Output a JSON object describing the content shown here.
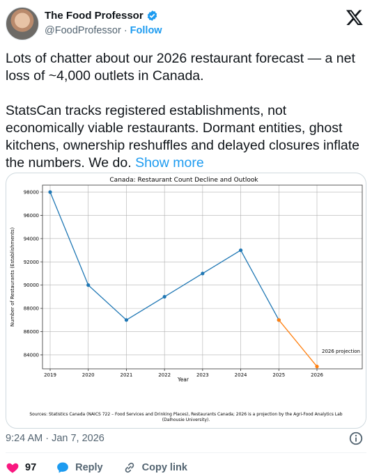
{
  "author": {
    "name": "The Food Professor",
    "handle": "@FoodProfessor",
    "separator": "·",
    "follow_label": "Follow"
  },
  "tweet": {
    "paragraph1": "Lots of chatter about our 2026 restaurant forecast — a net loss of ~4,000 outlets in Canada.",
    "paragraph2": "StatsCan tracks registered establishments, not economically viable restaurants. Dormant entities, ghost kitchens, ownership reshuffles and delayed closures inflate the numbers. We do.",
    "show_more": "Show more"
  },
  "chart_data": {
    "type": "line",
    "title": "Canada: Restaurant Count Decline and Outlook",
    "xlabel": "Year",
    "ylabel": "Number of Restaurants (Establishments)",
    "x": [
      "2019",
      "2020",
      "2021",
      "2022",
      "2023",
      "2024",
      "2025",
      "2026"
    ],
    "series": [
      {
        "values": [
          98000,
          90000,
          87000,
          89000,
          91000,
          93000,
          87000,
          null
        ],
        "color": "#1f77b4"
      },
      {
        "values": [
          null,
          null,
          null,
          null,
          null,
          null,
          87000,
          83000
        ],
        "color": "#ff7f0e"
      }
    ],
    "yticks": [
      84000,
      86000,
      88000,
      90000,
      92000,
      94000,
      96000,
      98000
    ],
    "ylim": [
      82800,
      98600
    ],
    "grid": true,
    "annotation": "2026 projection",
    "source": "Sources: Statistics Canada (NAICS 722 – Food Services and Drinking Places), Restaurants Canada; 2026 is a projection by the Agri-Food Analytics Lab",
    "source_line2": "(Dalhousie University)."
  },
  "meta": {
    "timestamp": "9:24 AM · Jan 7, 2026"
  },
  "actions": {
    "likes": "97",
    "reply": "Reply",
    "copy_link": "Copy link"
  },
  "colors": {
    "accent": "#1d9bf0",
    "like": "#f91880",
    "text_secondary": "#536471"
  }
}
